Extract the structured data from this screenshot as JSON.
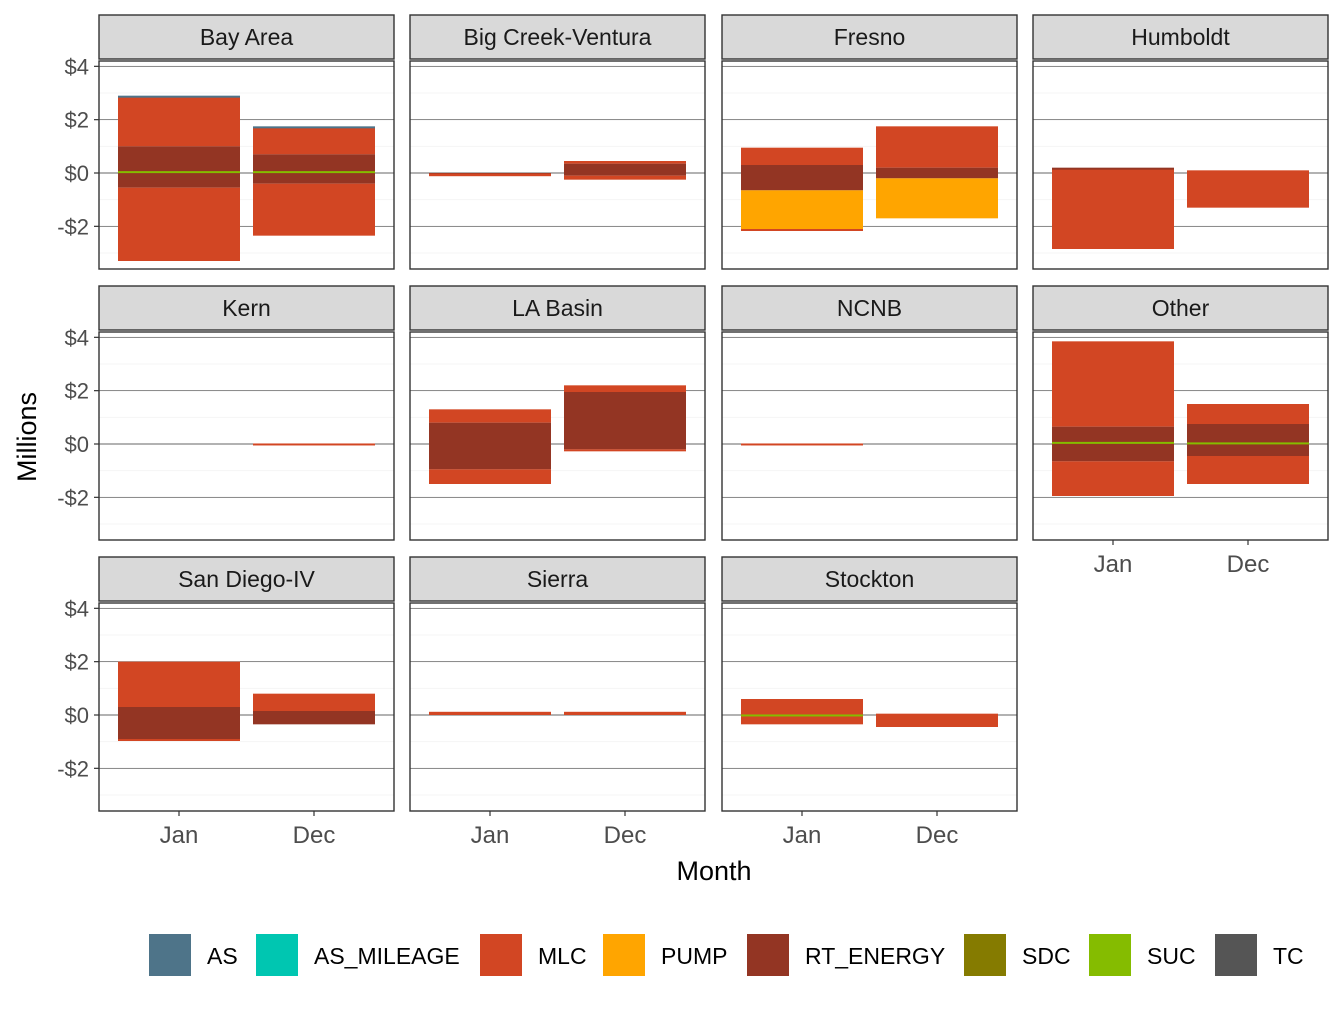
{
  "chart_data": {
    "type": "bar",
    "layout": "faceted stacked bar",
    "xlabel": "Month",
    "ylabel": "Millions",
    "ylim": [
      -3.6,
      4.2
    ],
    "yticks": [
      -2,
      0,
      2,
      4
    ],
    "ytick_labels": [
      "-$2",
      "$0",
      "$2",
      "$4"
    ],
    "categories": [
      "Jan",
      "Dec"
    ],
    "legend": {
      "position": "bottom",
      "items": [
        {
          "name": "AS",
          "color": "#4e7489"
        },
        {
          "name": "AS_MILEAGE",
          "color": "#00c6b1"
        },
        {
          "name": "MLC",
          "color": "#d24623"
        },
        {
          "name": "PUMP",
          "color": "#ffa500"
        },
        {
          "name": "RT_ENERGY",
          "color": "#933523"
        },
        {
          "name": "SDC",
          "color": "#857b00"
        },
        {
          "name": "SUC",
          "color": "#85bc00"
        },
        {
          "name": "TC",
          "color": "#555555"
        }
      ]
    },
    "panels": [
      {
        "name": "Bay Area",
        "bars": [
          {
            "month": "Jan",
            "segments": [
              {
                "component": "MLC",
                "start": 1.0,
                "end": 2.85
              },
              {
                "component": "RT_ENERGY",
                "start": 0.05,
                "end": 1.0
              },
              {
                "component": "AS",
                "start": 2.85,
                "end": 2.9
              },
              {
                "component": "RT_ENERGY",
                "start": -0.55,
                "end": 0.05
              },
              {
                "component": "MLC",
                "start": -3.3,
                "end": -0.55
              },
              {
                "component": "SUC",
                "start": 0.03,
                "end": 0.07
              }
            ]
          },
          {
            "month": "Dec",
            "segments": [
              {
                "component": "MLC",
                "start": 0.7,
                "end": 1.7
              },
              {
                "component": "RT_ENERGY",
                "start": 0.05,
                "end": 0.7
              },
              {
                "component": "AS",
                "start": 1.7,
                "end": 1.75
              },
              {
                "component": "RT_ENERGY",
                "start": -0.4,
                "end": 0.05
              },
              {
                "component": "MLC",
                "start": -2.35,
                "end": -0.4
              },
              {
                "component": "SUC",
                "start": 0.03,
                "end": 0.07
              }
            ]
          }
        ]
      },
      {
        "name": "Big Creek-Ventura",
        "bars": [
          {
            "month": "Jan",
            "segments": [
              {
                "component": "RT_ENERGY",
                "start": -0.02,
                "end": 0.0
              },
              {
                "component": "MLC",
                "start": -0.12,
                "end": -0.02
              }
            ]
          },
          {
            "month": "Dec",
            "segments": [
              {
                "component": "MLC",
                "start": 0.35,
                "end": 0.45
              },
              {
                "component": "RT_ENERGY",
                "start": 0.0,
                "end": 0.35
              },
              {
                "component": "RT_ENERGY",
                "start": -0.1,
                "end": 0.0
              },
              {
                "component": "MLC",
                "start": -0.25,
                "end": -0.1
              }
            ]
          }
        ]
      },
      {
        "name": "Fresno",
        "bars": [
          {
            "month": "Jan",
            "segments": [
              {
                "component": "MLC",
                "start": 0.3,
                "end": 0.95
              },
              {
                "component": "RT_ENERGY",
                "start": 0.0,
                "end": 0.3
              },
              {
                "component": "RT_ENERGY",
                "start": -0.65,
                "end": 0.0
              },
              {
                "component": "PUMP",
                "start": -2.1,
                "end": -0.65
              },
              {
                "component": "MLC",
                "start": -2.15,
                "end": -2.1
              }
            ]
          },
          {
            "month": "Dec",
            "segments": [
              {
                "component": "MLC",
                "start": 0.2,
                "end": 1.75
              },
              {
                "component": "RT_ENERGY",
                "start": 0.0,
                "end": 0.2
              },
              {
                "component": "RT_ENERGY",
                "start": -0.2,
                "end": 0.0
              },
              {
                "component": "PUMP",
                "start": -1.7,
                "end": -0.2
              }
            ]
          }
        ]
      },
      {
        "name": "Humboldt",
        "bars": [
          {
            "month": "Jan",
            "segments": [
              {
                "component": "MLC",
                "start": 0.0,
                "end": 0.15
              },
              {
                "component": "RT_ENERGY",
                "start": 0.15,
                "end": 0.2
              },
              {
                "component": "MLC",
                "start": -2.85,
                "end": 0.0
              }
            ]
          },
          {
            "month": "Dec",
            "segments": [
              {
                "component": "MLC",
                "start": 0.0,
                "end": 0.1
              },
              {
                "component": "MLC",
                "start": -1.3,
                "end": 0.0
              }
            ]
          }
        ]
      },
      {
        "name": "Kern",
        "bars": [
          {
            "month": "Jan",
            "segments": []
          },
          {
            "month": "Dec",
            "segments": [
              {
                "component": "MLC",
                "start": -0.02,
                "end": 0.02
              }
            ]
          }
        ]
      },
      {
        "name": "LA Basin",
        "bars": [
          {
            "month": "Jan",
            "segments": [
              {
                "component": "MLC",
                "start": 0.8,
                "end": 1.3
              },
              {
                "component": "RT_ENERGY",
                "start": 0.0,
                "end": 0.8
              },
              {
                "component": "RT_ENERGY",
                "start": -0.95,
                "end": 0.0
              },
              {
                "component": "MLC",
                "start": -1.5,
                "end": -0.95
              }
            ]
          },
          {
            "month": "Dec",
            "segments": [
              {
                "component": "MLC",
                "start": 1.95,
                "end": 2.2
              },
              {
                "component": "RT_ENERGY",
                "start": 0.0,
                "end": 1.95
              },
              {
                "component": "RT_ENERGY",
                "start": -0.2,
                "end": 0.0
              },
              {
                "component": "MLC",
                "start": -0.25,
                "end": -0.2
              }
            ]
          }
        ]
      },
      {
        "name": "NCNB",
        "bars": [
          {
            "month": "Jan",
            "segments": [
              {
                "component": "MLC",
                "start": -0.02,
                "end": 0.02
              }
            ]
          },
          {
            "month": "Dec",
            "segments": []
          }
        ]
      },
      {
        "name": "Other",
        "bars": [
          {
            "month": "Jan",
            "segments": [
              {
                "component": "MLC",
                "start": 0.65,
                "end": 3.85
              },
              {
                "component": "RT_ENERGY",
                "start": 0.05,
                "end": 0.65
              },
              {
                "component": "RT_ENERGY",
                "start": -0.65,
                "end": 0.05
              },
              {
                "component": "MLC",
                "start": -1.95,
                "end": -0.65
              },
              {
                "component": "SUC",
                "start": 0.03,
                "end": 0.08
              }
            ]
          },
          {
            "month": "Dec",
            "segments": [
              {
                "component": "MLC",
                "start": 0.75,
                "end": 1.5
              },
              {
                "component": "RT_ENERGY",
                "start": 0.05,
                "end": 0.75
              },
              {
                "component": "RT_ENERGY",
                "start": -0.45,
                "end": 0.05
              },
              {
                "component": "MLC",
                "start": -1.5,
                "end": -0.45
              },
              {
                "component": "SUC",
                "start": 0.02,
                "end": 0.06
              }
            ]
          }
        ]
      },
      {
        "name": "San Diego-IV",
        "bars": [
          {
            "month": "Jan",
            "segments": [
              {
                "component": "MLC",
                "start": 0.3,
                "end": 2.0
              },
              {
                "component": "RT_ENERGY",
                "start": 0.0,
                "end": 0.3
              },
              {
                "component": "RT_ENERGY",
                "start": -0.9,
                "end": 0.0
              },
              {
                "component": "MLC",
                "start": -0.95,
                "end": -0.9
              }
            ]
          },
          {
            "month": "Dec",
            "segments": [
              {
                "component": "MLC",
                "start": 0.15,
                "end": 0.8
              },
              {
                "component": "RT_ENERGY",
                "start": 0.0,
                "end": 0.15
              },
              {
                "component": "RT_ENERGY",
                "start": -0.35,
                "end": 0.0
              }
            ]
          }
        ]
      },
      {
        "name": "Sierra",
        "bars": [
          {
            "month": "Jan",
            "segments": [
              {
                "component": "MLC",
                "start": 0.0,
                "end": 0.12
              }
            ]
          },
          {
            "month": "Dec",
            "segments": [
              {
                "component": "MLC",
                "start": 0.0,
                "end": 0.12
              }
            ]
          }
        ]
      },
      {
        "name": "Stockton",
        "bars": [
          {
            "month": "Jan",
            "segments": [
              {
                "component": "MLC",
                "start": 0.0,
                "end": 0.6
              },
              {
                "component": "MLC",
                "start": -0.35,
                "end": 0.0
              },
              {
                "component": "SUC",
                "start": -0.02,
                "end": 0.02
              }
            ]
          },
          {
            "month": "Dec",
            "segments": [
              {
                "component": "MLC",
                "start": 0.0,
                "end": 0.05
              },
              {
                "component": "MLC",
                "start": -0.45,
                "end": 0.0
              }
            ]
          }
        ]
      }
    ]
  }
}
